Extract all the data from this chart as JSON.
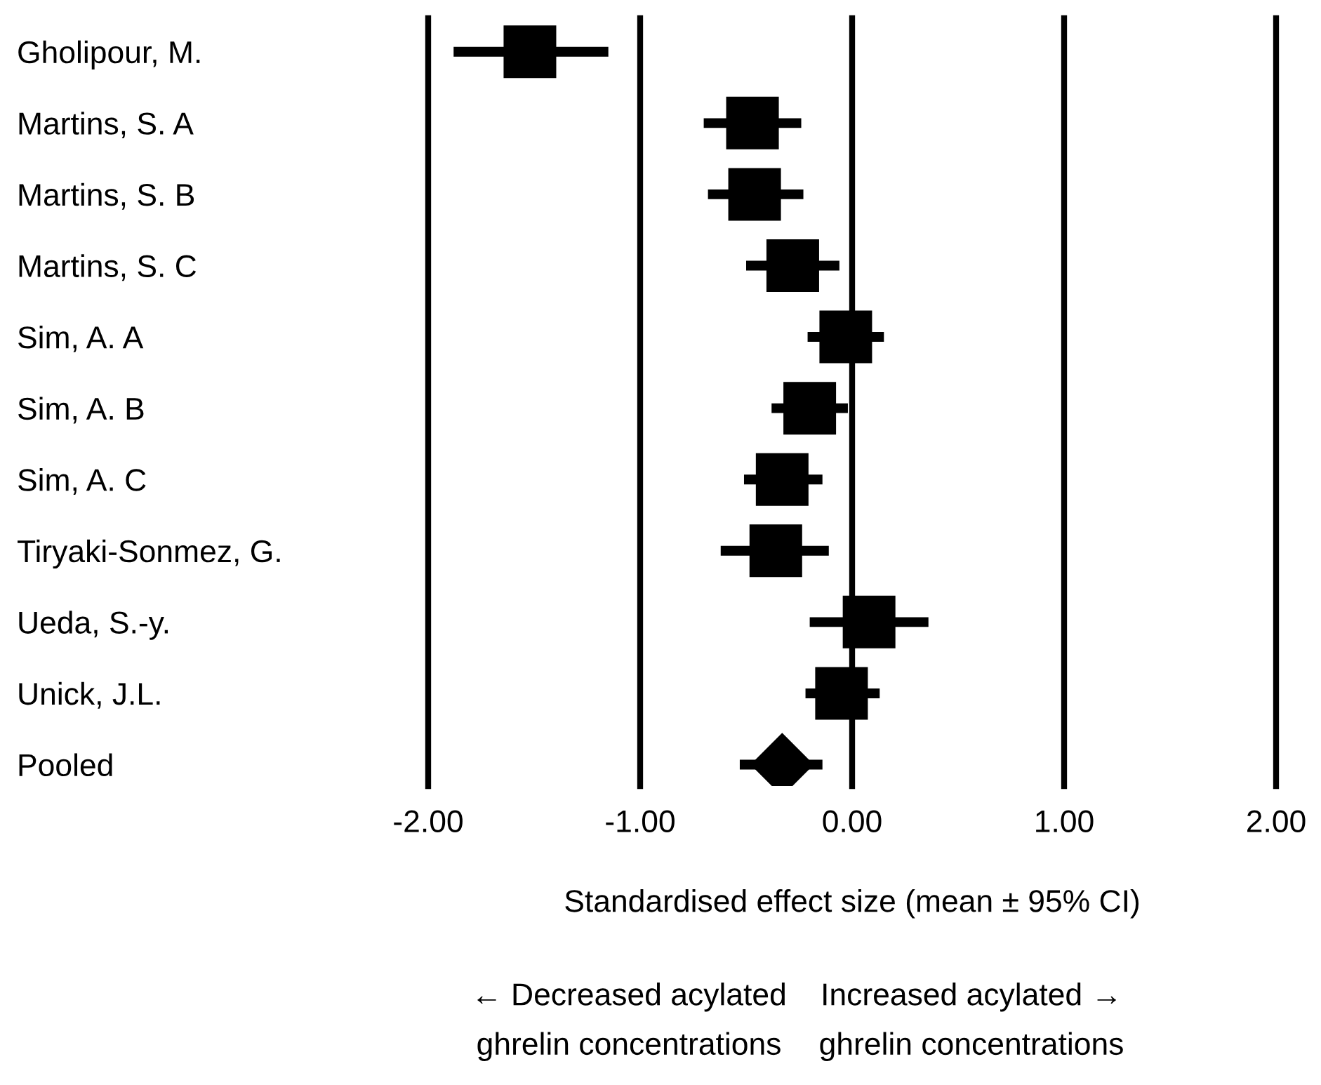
{
  "chart_data": {
    "type": "scatter",
    "orientation": "horizontal",
    "categories": [
      "Gholipour, M.",
      "Martins, S. A",
      "Martins, S. B",
      "Martins, S. C",
      "Sim, A. A",
      "Sim, A. B",
      "Sim, A. C",
      "Tiryaki-Sonmez, G.",
      "Ueda, S.-y.",
      "Unick, J.L.",
      "Pooled"
    ],
    "series": [
      {
        "color": "#000000",
        "marker": "square",
        "values": [
          -1.52,
          -0.47,
          -0.46,
          -0.28,
          -0.03,
          -0.2,
          -0.33,
          -0.36,
          0.08,
          -0.05,
          null
        ],
        "errors": [
          [
            -1.88,
            -1.15
          ],
          [
            -0.7,
            -0.24
          ],
          [
            -0.68,
            -0.23
          ],
          [
            -0.5,
            -0.06
          ],
          [
            -0.21,
            0.15
          ],
          [
            -0.38,
            -0.02
          ],
          [
            -0.51,
            -0.14
          ],
          [
            -0.62,
            -0.11
          ],
          [
            -0.2,
            0.36
          ],
          [
            -0.22,
            0.13
          ],
          null
        ]
      },
      {
        "color": "#000000",
        "marker": "diamond",
        "values": [
          null,
          null,
          null,
          null,
          null,
          null,
          null,
          null,
          null,
          null,
          -0.33
        ],
        "errors": [
          null,
          null,
          null,
          null,
          null,
          null,
          null,
          null,
          null,
          null,
          [
            -0.53,
            -0.14
          ]
        ]
      }
    ],
    "xlim": [
      -2,
      2
    ],
    "xticks": [
      {
        "value": -2,
        "label": "-2.00"
      },
      {
        "value": -1,
        "label": "-1.00"
      },
      {
        "value": 0,
        "label": "0.00"
      },
      {
        "value": 1,
        "label": "1.00"
      },
      {
        "value": 2,
        "label": "2.00"
      }
    ],
    "grid": "x",
    "xlabel": "Standardised effect size (mean ± 95% CI)",
    "annotations": [
      "← Decreased acylated\nghrelin concentrations",
      "Increased acylated →\nghrelin concentrations"
    ]
  }
}
